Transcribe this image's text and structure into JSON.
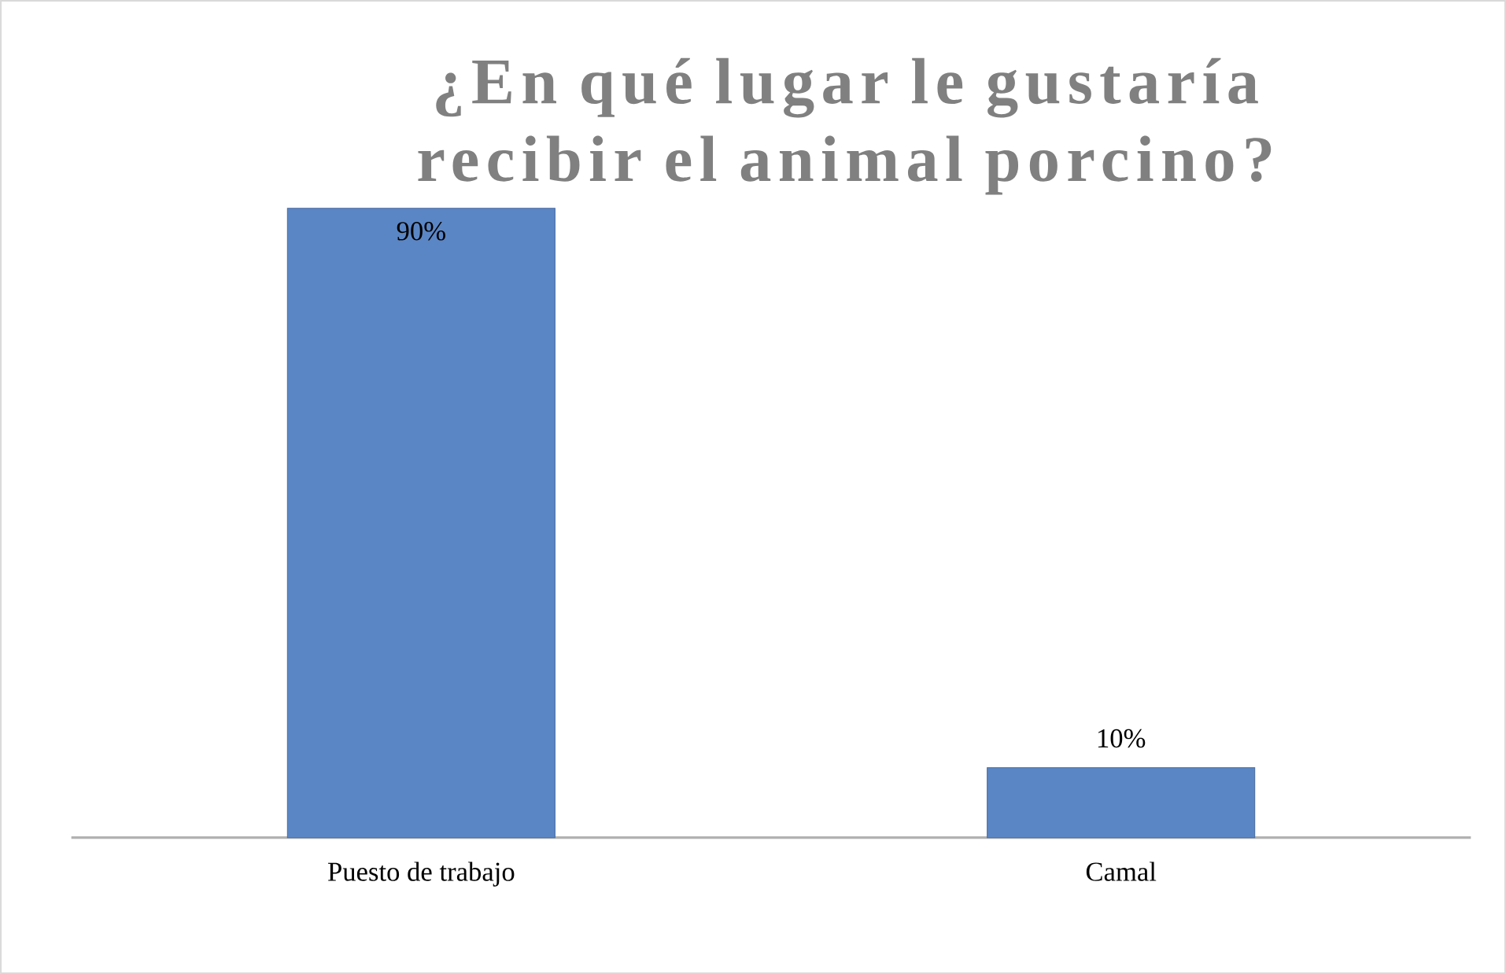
{
  "chart_data": {
    "type": "bar",
    "title": "¿En qué lugar le gustaría recibir el animal porcino?",
    "categories": [
      "Puesto de trabajo",
      "Camal"
    ],
    "values": [
      90,
      10
    ],
    "value_labels": [
      "90%",
      "10%"
    ],
    "color": "#5b86c5"
  }
}
